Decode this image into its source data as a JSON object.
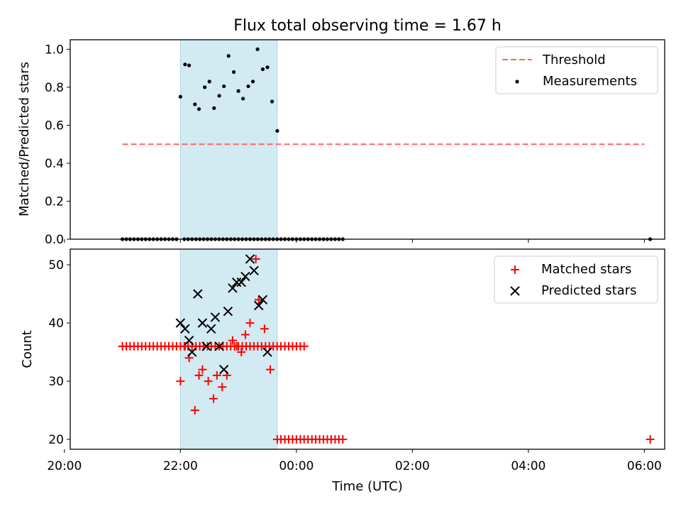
{
  "title": "Flux total observing time = 1.67 h",
  "chart_data": [
    {
      "type": "scatter",
      "title": "Flux total observing time = 1.67 h",
      "xlabel": "",
      "ylabel": "Matched/Predicted stars",
      "x_unit": "hours (UTC, relative to midnight)",
      "xlim": [
        -3.9,
        6.35
      ],
      "ylim": [
        0.0,
        1.05
      ],
      "yticks": [
        0.0,
        0.2,
        0.4,
        0.6,
        0.8,
        1.0
      ],
      "ytick_labels": [
        "0.0",
        "0.2",
        "0.4",
        "0.6",
        "0.8",
        "1.0"
      ],
      "grid": false,
      "legend": "top-right",
      "shaded_span": [
        -2.0,
        -0.33
      ],
      "shaded_color": "#add8e6",
      "threshold": {
        "name": "Threshold",
        "y": 0.5,
        "x": [
          -3.0,
          6.0
        ],
        "color": "#ff6666",
        "style": "dashed"
      },
      "measurements": {
        "name": "Measurements",
        "color": "#000000",
        "points": [
          [
            -3.0,
            0
          ],
          [
            -2.933,
            0
          ],
          [
            -2.867,
            0
          ],
          [
            -2.8,
            0
          ],
          [
            -2.733,
            0
          ],
          [
            -2.667,
            0
          ],
          [
            -2.6,
            0
          ],
          [
            -2.533,
            0
          ],
          [
            -2.467,
            0
          ],
          [
            -2.4,
            0
          ],
          [
            -2.333,
            0
          ],
          [
            -2.267,
            0
          ],
          [
            -2.2,
            0
          ],
          [
            -2.133,
            0
          ],
          [
            -2.067,
            0
          ],
          [
            -1.933,
            0
          ],
          [
            -1.867,
            0
          ],
          [
            -1.8,
            0
          ],
          [
            -1.733,
            0
          ],
          [
            -1.667,
            0
          ],
          [
            -1.6,
            0
          ],
          [
            -1.533,
            0
          ],
          [
            -1.467,
            0
          ],
          [
            -1.4,
            0
          ],
          [
            -1.333,
            0
          ],
          [
            -1.267,
            0
          ],
          [
            -1.2,
            0
          ],
          [
            -1.133,
            0
          ],
          [
            -1.067,
            0
          ],
          [
            -1.0,
            0
          ],
          [
            -0.933,
            0
          ],
          [
            -0.867,
            0
          ],
          [
            -0.8,
            0
          ],
          [
            -0.733,
            0
          ],
          [
            -0.667,
            0
          ],
          [
            -0.6,
            0
          ],
          [
            -0.533,
            0
          ],
          [
            -0.467,
            0
          ],
          [
            -0.4,
            0
          ],
          [
            -0.333,
            0
          ],
          [
            -0.267,
            0
          ],
          [
            -0.2,
            0
          ],
          [
            -0.133,
            0
          ],
          [
            -0.067,
            0
          ],
          [
            0.0,
            0
          ],
          [
            0.067,
            0
          ],
          [
            0.133,
            0
          ],
          [
            0.2,
            0
          ],
          [
            0.267,
            0
          ],
          [
            0.333,
            0
          ],
          [
            0.4,
            0
          ],
          [
            0.467,
            0
          ],
          [
            0.533,
            0
          ],
          [
            0.6,
            0
          ],
          [
            0.667,
            0
          ],
          [
            0.733,
            0
          ],
          [
            0.8,
            0
          ],
          [
            -2.0,
            0.75
          ],
          [
            -1.92,
            0.92
          ],
          [
            -1.85,
            0.915
          ],
          [
            -1.75,
            0.71
          ],
          [
            -1.68,
            0.685
          ],
          [
            -1.58,
            0.8
          ],
          [
            -1.5,
            0.83
          ],
          [
            -1.42,
            0.69
          ],
          [
            -1.33,
            0.755
          ],
          [
            -1.25,
            0.805
          ],
          [
            -1.17,
            0.965
          ],
          [
            -1.08,
            0.88
          ],
          [
            -1.0,
            0.78
          ],
          [
            -0.92,
            0.74
          ],
          [
            -0.83,
            0.805
          ],
          [
            -0.75,
            0.83
          ],
          [
            -0.67,
            1.0
          ],
          [
            -0.58,
            0.895
          ],
          [
            -0.5,
            0.905
          ],
          [
            -0.42,
            0.725
          ],
          [
            -0.33,
            0.57
          ],
          [
            6.1,
            0
          ]
        ]
      }
    },
    {
      "type": "scatter",
      "title": "",
      "xlabel": "Time (UTC)",
      "ylabel": "Count",
      "x_unit": "hours (UTC, relative to midnight)",
      "xlim": [
        -3.9,
        6.35
      ],
      "ylim": [
        18.3,
        52.7
      ],
      "yticks": [
        20,
        30,
        40,
        50
      ],
      "ytick_labels": [
        "20",
        "30",
        "40",
        "50"
      ],
      "xticks": [
        -4,
        -2,
        0,
        2,
        4,
        6
      ],
      "xtick_labels": [
        "20:00",
        "22:00",
        "00:00",
        "02:00",
        "04:00",
        "06:00"
      ],
      "grid": false,
      "legend": "top-right",
      "shaded_span": [
        -2.0,
        -0.33
      ],
      "shaded_color": "#add8e6",
      "series": [
        {
          "name": "Matched stars",
          "marker": "+",
          "color": "#ff0000",
          "points": [
            [
              -3.0,
              36
            ],
            [
              -2.933,
              36
            ],
            [
              -2.867,
              36
            ],
            [
              -2.8,
              36
            ],
            [
              -2.733,
              36
            ],
            [
              -2.667,
              36
            ],
            [
              -2.6,
              36
            ],
            [
              -2.533,
              36
            ],
            [
              -2.467,
              36
            ],
            [
              -2.4,
              36
            ],
            [
              -2.333,
              36
            ],
            [
              -2.267,
              36
            ],
            [
              -2.2,
              36
            ],
            [
              -2.133,
              36
            ],
            [
              -2.067,
              36
            ],
            [
              -2.0,
              36
            ],
            [
              -1.933,
              36
            ],
            [
              -1.867,
              36
            ],
            [
              -1.8,
              36
            ],
            [
              -1.733,
              36
            ],
            [
              -1.667,
              36
            ],
            [
              -1.6,
              36
            ],
            [
              -1.533,
              36
            ],
            [
              -1.467,
              36
            ],
            [
              -1.4,
              36
            ],
            [
              -1.333,
              36
            ],
            [
              -1.267,
              36
            ],
            [
              -1.2,
              36
            ],
            [
              -1.133,
              36
            ],
            [
              -1.067,
              36
            ],
            [
              -1.0,
              36
            ],
            [
              -0.933,
              36
            ],
            [
              -0.867,
              36
            ],
            [
              -0.8,
              36
            ],
            [
              -0.733,
              36
            ],
            [
              -0.667,
              36
            ],
            [
              -0.6,
              36
            ],
            [
              -0.533,
              36
            ],
            [
              -0.467,
              36
            ],
            [
              -0.4,
              36
            ],
            [
              -0.333,
              36
            ],
            [
              -0.267,
              36
            ],
            [
              -0.2,
              36
            ],
            [
              -0.133,
              36
            ],
            [
              -0.067,
              36
            ],
            [
              0.0,
              36
            ],
            [
              0.067,
              36
            ],
            [
              0.133,
              36
            ],
            [
              -2.0,
              30
            ],
            [
              -1.92,
              36
            ],
            [
              -1.85,
              34
            ],
            [
              -1.75,
              25
            ],
            [
              -1.68,
              31
            ],
            [
              -1.62,
              32
            ],
            [
              -1.52,
              30
            ],
            [
              -1.43,
              27
            ],
            [
              -1.37,
              31
            ],
            [
              -1.28,
              29
            ],
            [
              -1.2,
              31
            ],
            [
              -1.1,
              37
            ],
            [
              -1.03,
              36
            ],
            [
              -0.95,
              35
            ],
            [
              -0.88,
              38
            ],
            [
              -0.8,
              40
            ],
            [
              -0.7,
              51
            ],
            [
              -0.65,
              44
            ],
            [
              -0.55,
              39
            ],
            [
              -0.45,
              32
            ],
            [
              -0.33,
              20
            ],
            [
              -0.267,
              20
            ],
            [
              -0.2,
              20
            ],
            [
              -0.133,
              20
            ],
            [
              -0.067,
              20
            ],
            [
              0.0,
              20
            ],
            [
              0.067,
              20
            ],
            [
              0.133,
              20
            ],
            [
              0.2,
              20
            ],
            [
              0.267,
              20
            ],
            [
              0.333,
              20
            ],
            [
              0.4,
              20
            ],
            [
              0.467,
              20
            ],
            [
              0.533,
              20
            ],
            [
              0.6,
              20
            ],
            [
              0.667,
              20
            ],
            [
              0.733,
              20
            ],
            [
              0.8,
              20
            ],
            [
              6.1,
              20
            ]
          ]
        },
        {
          "name": "Predicted stars",
          "marker": "x",
          "color": "#000000",
          "points": [
            [
              -2.0,
              40
            ],
            [
              -1.92,
              39
            ],
            [
              -1.85,
              37
            ],
            [
              -1.8,
              35
            ],
            [
              -1.7,
              45
            ],
            [
              -1.62,
              40
            ],
            [
              -1.55,
              36
            ],
            [
              -1.47,
              39
            ],
            [
              -1.4,
              41
            ],
            [
              -1.33,
              36
            ],
            [
              -1.25,
              32
            ],
            [
              -1.18,
              42
            ],
            [
              -1.1,
              46
            ],
            [
              -1.03,
              47
            ],
            [
              -0.95,
              47
            ],
            [
              -0.88,
              48
            ],
            [
              -0.8,
              51
            ],
            [
              -0.73,
              49
            ],
            [
              -0.65,
              43
            ],
            [
              -0.58,
              44
            ],
            [
              -0.5,
              35
            ]
          ]
        }
      ]
    }
  ]
}
